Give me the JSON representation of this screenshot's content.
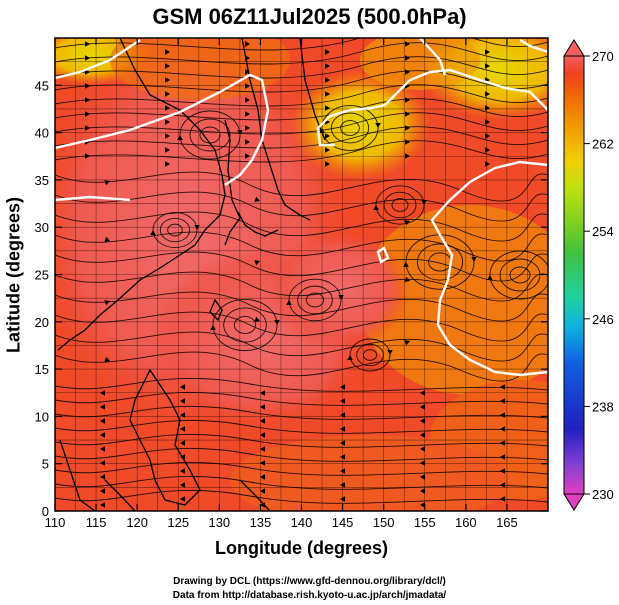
{
  "title": "GSM 06Z11Jul2025 (500.0hPa)",
  "x_axis": {
    "label": "Longitude (degrees)",
    "range": [
      110,
      170
    ],
    "ticks": [
      "110",
      "115",
      "120",
      "125",
      "130",
      "135",
      "140",
      "145",
      "150",
      "155",
      "160",
      "165"
    ]
  },
  "y_axis": {
    "label": "Latitude  (degrees)",
    "range": [
      0,
      50
    ],
    "ticks": [
      "0",
      "5",
      "10",
      "15",
      "20",
      "25",
      "30",
      "35",
      "40",
      "45"
    ]
  },
  "colorbar": {
    "ticks": [
      "270",
      "262",
      "254",
      "246",
      "238",
      "230"
    ],
    "range": [
      230,
      270
    ],
    "colors": [
      "#e040c0",
      "#8040d0",
      "#2020c0",
      "#1060e0",
      "#10b0e0",
      "#20d0a0",
      "#40c040",
      "#80d020",
      "#c0e010",
      "#f0d000",
      "#f0a000",
      "#f07000",
      "#f04020",
      "#f06060"
    ]
  },
  "colors": {
    "field_warm": "#f05030",
    "field_orange": "#f07010",
    "field_yellow": "#e8d000",
    "field_pink": "#f06868",
    "contour": "#ffffff",
    "coastline": "#000000"
  },
  "credits": {
    "line1": "Drawing by DCL (https://www.gfd-dennou.org/library/dcl/)",
    "line2": "Data from http://database.rish.kyoto-u.ac.jp/arch/jmadata/"
  }
}
